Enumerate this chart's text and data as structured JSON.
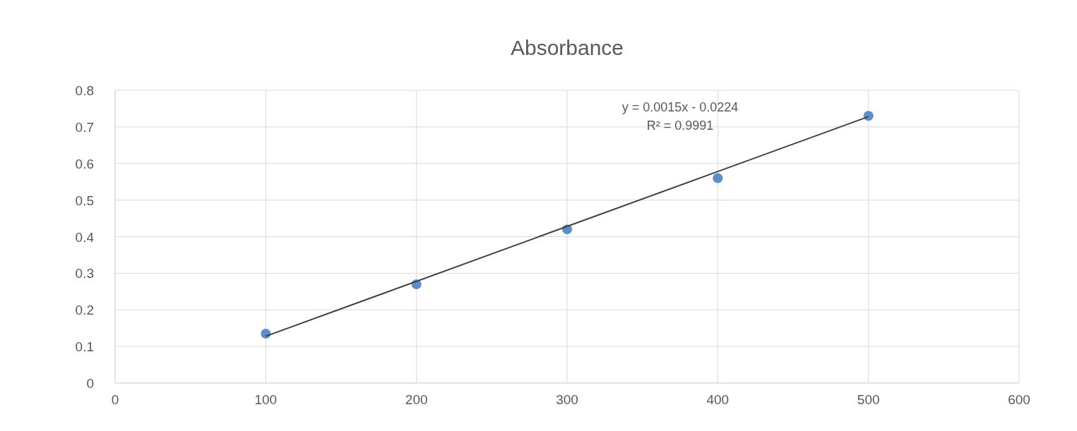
{
  "chart_data": {
    "type": "scatter",
    "title": "Absorbance",
    "x": [
      100,
      200,
      300,
      400,
      500
    ],
    "series": [
      {
        "color": "#5b8fc7",
        "values": [
          0.135,
          0.27,
          0.42,
          0.56,
          0.73
        ]
      },
      {
        "type": "line",
        "color": "#404040",
        "x": [
          100,
          500
        ],
        "values": [
          0.128,
          0.728
        ],
        "marker": "none"
      }
    ],
    "annotations": [
      "y = 0.0015x - 0.0224",
      "R² = 0.9991"
    ],
    "xlim": [
      0,
      600
    ],
    "xticks": [
      0,
      100,
      200,
      300,
      400,
      500,
      600
    ],
    "ylim": [
      0,
      0.8
    ],
    "yticks": [
      0,
      0.1,
      0.2,
      0.3,
      0.4,
      0.5,
      0.6,
      0.7,
      0.8
    ],
    "grid": true,
    "marker": "circle"
  }
}
